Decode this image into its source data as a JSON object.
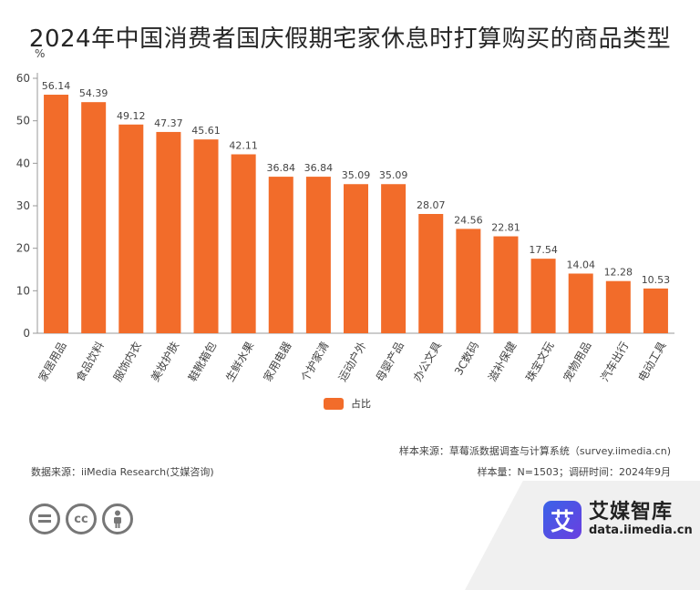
{
  "chart_data": {
    "type": "bar",
    "title": "2024年中国消费者国庆假期宅家休息时打算购买的商品类型",
    "ylabel": "%",
    "ylim": [
      0,
      60
    ],
    "yticks": [
      0,
      10,
      20,
      30,
      40,
      50,
      60
    ],
    "categories": [
      "家居用品",
      "食品饮料",
      "服饰内衣",
      "美妆护肤",
      "鞋靴箱包",
      "生鲜水果",
      "家用电器",
      "个护家清",
      "运动户外",
      "母婴产品",
      "办公文具",
      "3C数码",
      "滋补保健",
      "珠宝文玩",
      "宠物用品",
      "汽车出行",
      "电动工具"
    ],
    "series": [
      {
        "name": "占比",
        "values": [
          56.14,
          54.39,
          49.12,
          47.37,
          45.61,
          42.11,
          36.84,
          36.84,
          35.09,
          35.09,
          28.07,
          24.56,
          22.81,
          17.54,
          14.04,
          12.28,
          10.53
        ],
        "value_labels": [
          "56.14",
          "54.39",
          "49.12",
          "47.37",
          "45.61",
          "42.11",
          "36.84",
          "36.84",
          "35.09",
          "35.09",
          "28.07",
          "24.56",
          "22.81",
          "17.54",
          "14.04",
          "12.28",
          "10.53"
        ]
      }
    ],
    "legend_position": "bottom",
    "grid": false,
    "bar_color": "#f26c2a"
  },
  "footer": {
    "source_sample": "样本来源：草莓派数据调查与计算系统（survey.iimedia.cn)",
    "data_source": "数据来源：iiMedia Research(艾媒咨询)",
    "sample_info": "样本量：N=1503；调研时间：2024年9月"
  },
  "brand": {
    "logo_char": "艾",
    "name": "艾媒智库",
    "url": "data.iimedia.cn"
  },
  "license": {
    "icons": [
      "equals-icon",
      "cc-icon",
      "person-icon"
    ],
    "cc_text": "cc"
  }
}
